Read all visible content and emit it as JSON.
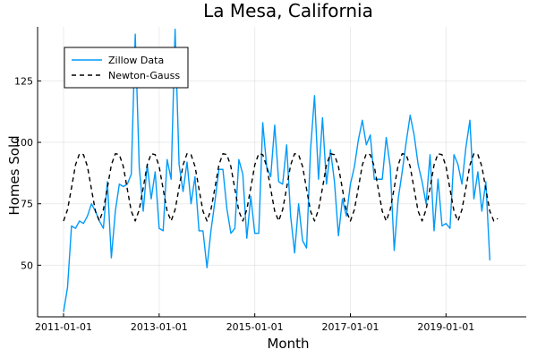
{
  "chart_data": {
    "type": "line",
    "title": "La Mesa, California",
    "xlabel": "Month",
    "ylabel": "Homes Sold",
    "x_start": "2011-01",
    "x_ticks": [
      "2011-01-01",
      "2013-01-01",
      "2015-01-01",
      "2017-01-01",
      "2019-01-01"
    ],
    "y_ticks": [
      50,
      75,
      100,
      125
    ],
    "xlim": [
      "2011-01",
      "2020-06"
    ],
    "ylim": [
      29,
      147
    ],
    "grid": true,
    "legend_position": "top-left",
    "series": [
      {
        "name": "Zillow Data",
        "color": "#009af9",
        "dash": "solid",
        "values": [
          31,
          41,
          66,
          65,
          68,
          67,
          70,
          75,
          72,
          68,
          65,
          84,
          53,
          72,
          83,
          82,
          83,
          87,
          144,
          90,
          72,
          91,
          77,
          88,
          65,
          64,
          93,
          85,
          146,
          91,
          80,
          92,
          75,
          86,
          64,
          64,
          49,
          64,
          76,
          89,
          89,
          73,
          63,
          65,
          93,
          87,
          61,
          78,
          63,
          63,
          108,
          90,
          86,
          107,
          84,
          83,
          99,
          70,
          55,
          75,
          60,
          57,
          97,
          119,
          85,
          110,
          83,
          97,
          84,
          62,
          77,
          70,
          83,
          90,
          101,
          109,
          99,
          103,
          85,
          85,
          85,
          102,
          90,
          56,
          77,
          88,
          100,
          111,
          103,
          91,
          84,
          75,
          95,
          64,
          85,
          66,
          67,
          65,
          95,
          91,
          83,
          98,
          109,
          77,
          88,
          72,
          84,
          52
        ]
      },
      {
        "name": "Newton-Gauss",
        "color": "#000000",
        "dash": "dashed",
        "values": [
          68,
          72.6,
          81.5,
          90.8,
          95.4,
          95.0,
          90.2,
          81.0,
          72.0,
          68.0,
          72.6,
          81.5,
          90.8,
          95.4,
          95.0,
          90.2,
          81.0,
          72.0,
          68.0,
          72.6,
          81.5,
          90.8,
          95.4,
          95.0,
          90.2,
          81.0,
          72.0,
          68.0,
          72.6,
          81.5,
          90.8,
          95.4,
          95.0,
          90.2,
          81.0,
          72.0,
          68.0,
          72.6,
          81.5,
          90.8,
          95.4,
          95.0,
          90.2,
          81.0,
          72.0,
          68.0,
          72.6,
          81.5,
          90.8,
          95.4,
          95.0,
          90.2,
          81.0,
          72.0,
          68.0,
          72.6,
          81.5,
          90.8,
          95.4,
          95.0,
          90.2,
          81.0,
          72.0,
          68.0,
          72.6,
          81.5,
          90.8,
          95.4,
          95.0,
          90.2,
          81.0,
          72.0,
          68.0,
          72.6,
          81.5,
          90.8,
          95.4,
          95.0,
          90.2,
          81.0,
          72.0,
          68.0,
          72.6,
          81.5,
          90.8,
          95.4,
          95.0,
          90.2,
          81.0,
          72.0,
          68.0,
          72.6,
          81.5,
          90.8,
          95.4,
          95.0,
          90.2,
          81.0,
          72.0,
          68.0,
          72.6,
          81.5,
          90.8,
          95.4,
          95.0,
          90.2,
          81.0,
          72.0,
          68.0,
          69.0
        ]
      }
    ]
  }
}
